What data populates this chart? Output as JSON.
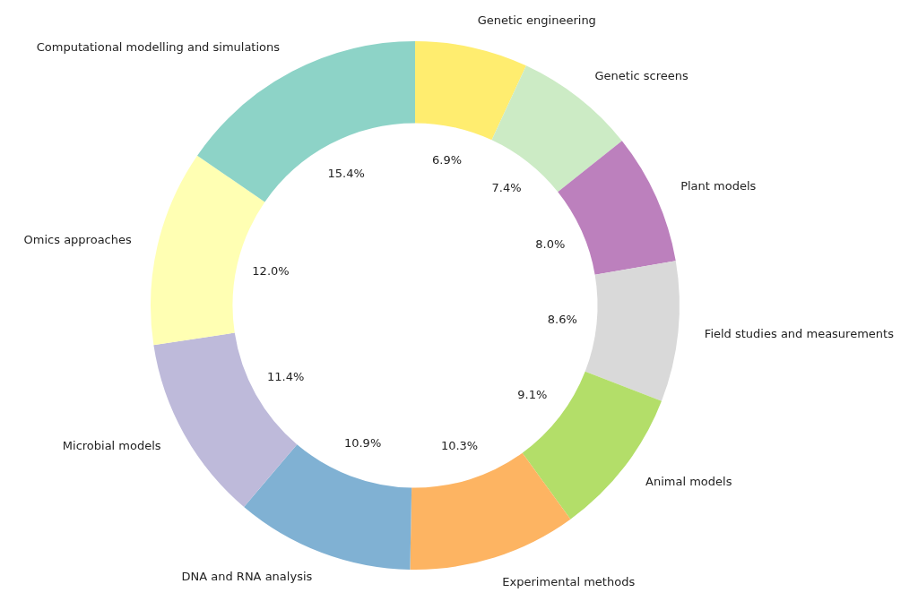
{
  "chart_data": {
    "type": "donut",
    "categories": [
      "Genetic engineering",
      "Genetic screens",
      "Plant models",
      "Field studies and measurements",
      "Animal models",
      "Experimental methods",
      "DNA and RNA analysis",
      "Microbial models",
      "Omics approaches",
      "Computational modelling and simulations"
    ],
    "values": [
      6.9,
      7.4,
      8.0,
      8.6,
      9.1,
      10.3,
      10.9,
      11.4,
      12.0,
      15.4
    ],
    "value_labels": [
      "6.9%",
      "7.4%",
      "8.0%",
      "8.6%",
      "9.1%",
      "10.3%",
      "10.9%",
      "11.4%",
      "12.0%",
      "15.4%"
    ],
    "colors": [
      "#ffed6f",
      "#ccebc5",
      "#bc80bd",
      "#d9d9d9",
      "#b3de69",
      "#fdb462",
      "#80b1d3",
      "#bebada",
      "#ffffb3",
      "#8dd3c7"
    ],
    "legend": false
  }
}
